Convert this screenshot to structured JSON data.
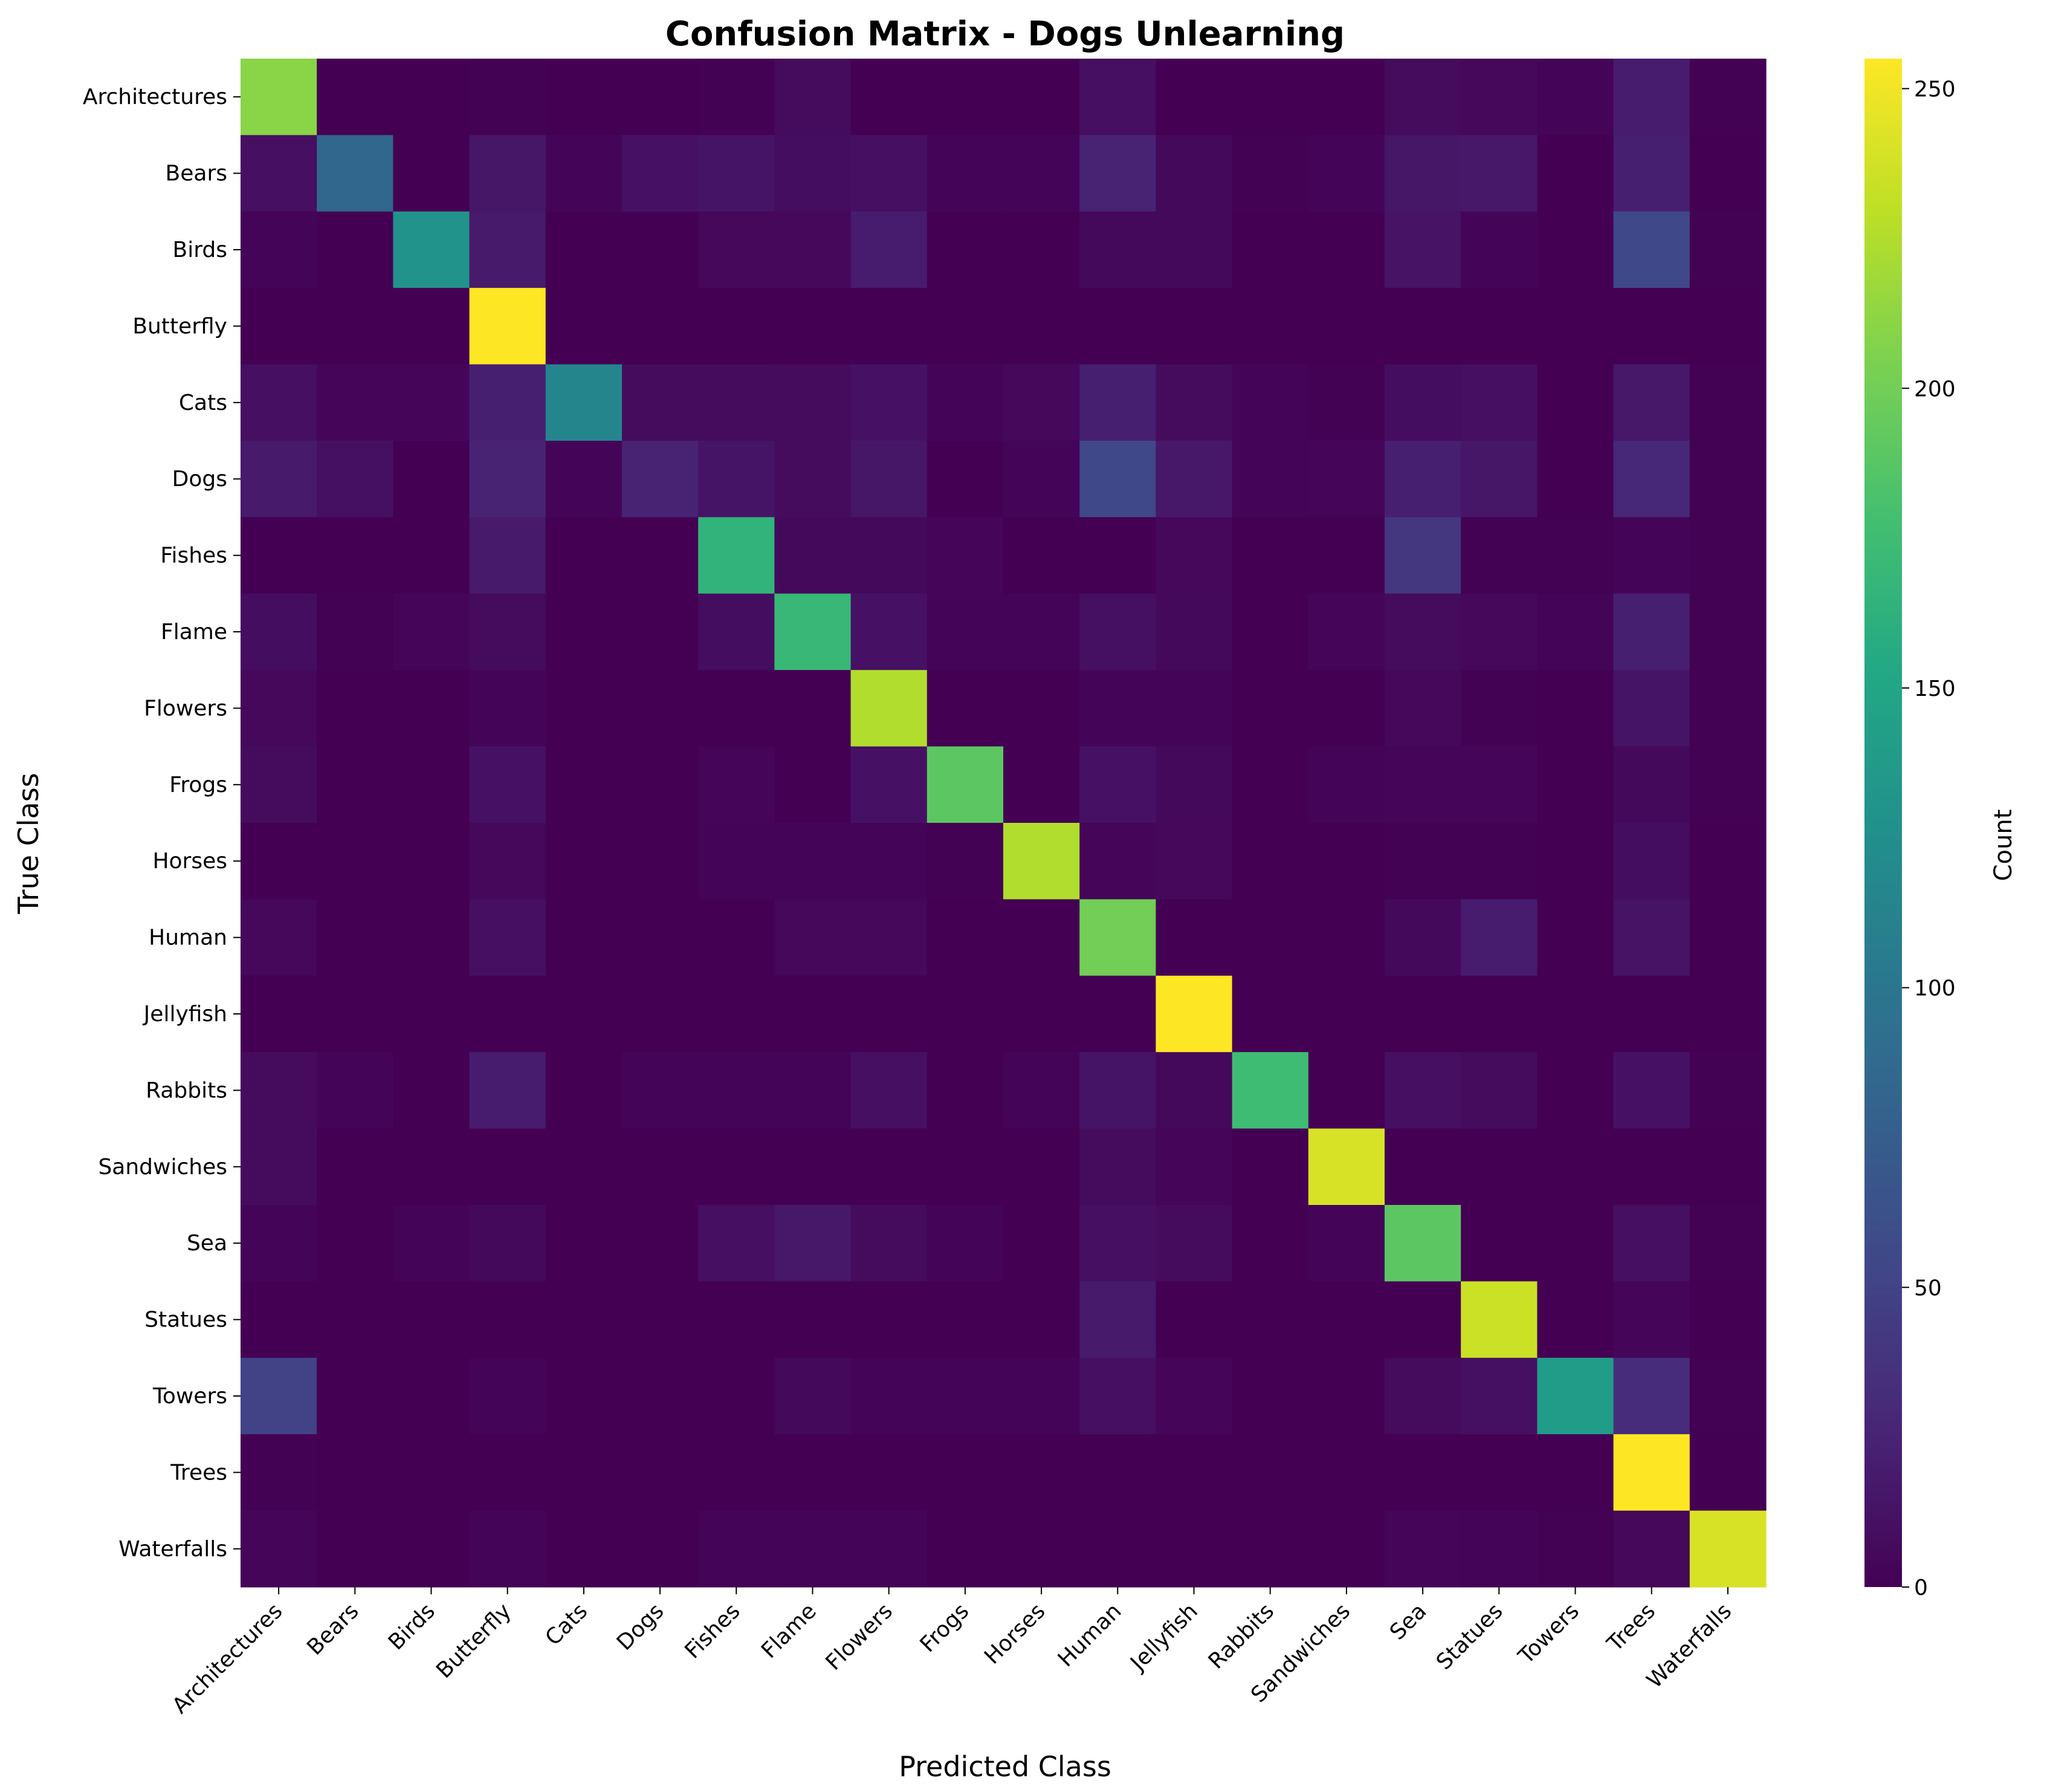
{
  "chart_data": {
    "type": "heatmap",
    "title": "Confusion Matrix - Dogs Unlearning",
    "xlabel": "Predicted Class",
    "ylabel": "True Class",
    "x_categories": [
      "Architectures",
      "Bears",
      "Birds",
      "Butterfly",
      "Cats",
      "Dogs",
      "Fishes",
      "Flame",
      "Flowers",
      "Frogs",
      "Horses",
      "Human",
      "Jellyfish",
      "Rabbits",
      "Sandwiches",
      "Sea",
      "Statues",
      "Towers",
      "Trees",
      "Waterfalls"
    ],
    "y_categories": [
      "Architectures",
      "Bears",
      "Birds",
      "Butterfly",
      "Cats",
      "Dogs",
      "Fishes",
      "Flame",
      "Flowers",
      "Frogs",
      "Horses",
      "Human",
      "Jellyfish",
      "Rabbits",
      "Sandwiches",
      "Sea",
      "Statues",
      "Towers",
      "Trees",
      "Waterfalls"
    ],
    "values": [
      [
        210,
        0,
        0,
        1,
        0,
        0,
        1,
        8,
        0,
        0,
        0,
        10,
        0,
        0,
        0,
        7,
        5,
        2,
        20,
        1
      ],
      [
        10,
        85,
        0,
        15,
        3,
        12,
        14,
        9,
        10,
        3,
        3,
        25,
        6,
        1,
        3,
        15,
        17,
        0,
        22,
        0
      ],
      [
        3,
        0,
        130,
        18,
        0,
        0,
        5,
        5,
        20,
        0,
        0,
        6,
        6,
        0,
        0,
        13,
        3,
        0,
        55,
        1
      ],
      [
        0,
        0,
        0,
        255,
        0,
        0,
        0,
        0,
        0,
        0,
        0,
        0,
        0,
        0,
        0,
        0,
        0,
        0,
        0,
        0
      ],
      [
        10,
        4,
        4,
        22,
        115,
        8,
        8,
        7,
        12,
        3,
        5,
        22,
        8,
        3,
        1,
        9,
        10,
        0,
        17,
        1
      ],
      [
        18,
        11,
        0,
        25,
        3,
        25,
        14,
        8,
        15,
        0,
        3,
        55,
        16,
        2,
        4,
        22,
        15,
        0,
        28,
        1
      ],
      [
        0,
        0,
        0,
        18,
        0,
        0,
        165,
        6,
        6,
        4,
        0,
        0,
        5,
        0,
        0,
        40,
        1,
        1,
        3,
        1
      ],
      [
        9,
        1,
        4,
        7,
        0,
        0,
        9,
        170,
        12,
        2,
        2,
        11,
        6,
        0,
        4,
        7,
        5,
        2,
        22,
        1
      ],
      [
        5,
        0,
        0,
        3,
        0,
        0,
        0,
        0,
        225,
        0,
        0,
        3,
        3,
        0,
        0,
        5,
        1,
        0,
        14,
        1
      ],
      [
        8,
        0,
        0,
        12,
        0,
        0,
        4,
        0,
        12,
        190,
        0,
        12,
        6,
        0,
        3,
        4,
        4,
        0,
        6,
        1
      ],
      [
        0,
        0,
        0,
        5,
        0,
        0,
        3,
        3,
        3,
        1,
        225,
        4,
        5,
        0,
        0,
        1,
        1,
        0,
        9,
        0
      ],
      [
        5,
        0,
        0,
        10,
        0,
        0,
        0,
        5,
        5,
        0,
        0,
        200,
        0,
        0,
        0,
        6,
        20,
        0,
        13,
        0
      ],
      [
        0,
        0,
        0,
        0,
        0,
        0,
        0,
        0,
        0,
        0,
        0,
        0,
        255,
        0,
        0,
        0,
        0,
        0,
        0,
        0
      ],
      [
        8,
        2,
        0,
        20,
        0,
        3,
        3,
        3,
        10,
        0,
        3,
        14,
        6,
        175,
        0,
        10,
        7,
        0,
        12,
        1
      ],
      [
        8,
        0,
        0,
        0,
        0,
        0,
        0,
        0,
        0,
        0,
        0,
        7,
        4,
        0,
        240,
        0,
        0,
        0,
        0,
        0
      ],
      [
        3,
        0,
        2,
        6,
        0,
        0,
        10,
        16,
        8,
        2,
        0,
        10,
        7,
        0,
        3,
        190,
        0,
        0,
        10,
        1
      ],
      [
        0,
        0,
        0,
        0,
        0,
        0,
        0,
        0,
        0,
        0,
        0,
        18,
        0,
        0,
        0,
        0,
        235,
        0,
        4,
        0
      ],
      [
        50,
        0,
        0,
        2,
        0,
        0,
        0,
        6,
        2,
        2,
        2,
        10,
        4,
        0,
        0,
        8,
        11,
        140,
        32,
        1
      ],
      [
        1,
        0,
        0,
        0,
        0,
        0,
        0,
        0,
        0,
        0,
        0,
        0,
        0,
        0,
        0,
        0,
        0,
        0,
        255,
        0
      ],
      [
        4,
        0,
        0,
        2,
        0,
        0,
        2,
        2,
        2,
        0,
        0,
        0,
        0,
        0,
        0,
        4,
        2,
        1,
        5,
        240
      ]
    ],
    "colormap": "viridis",
    "colorbar": {
      "label": "Count",
      "min": 0,
      "max": 255,
      "ticks": [
        0,
        50,
        100,
        150,
        200,
        250
      ]
    }
  }
}
